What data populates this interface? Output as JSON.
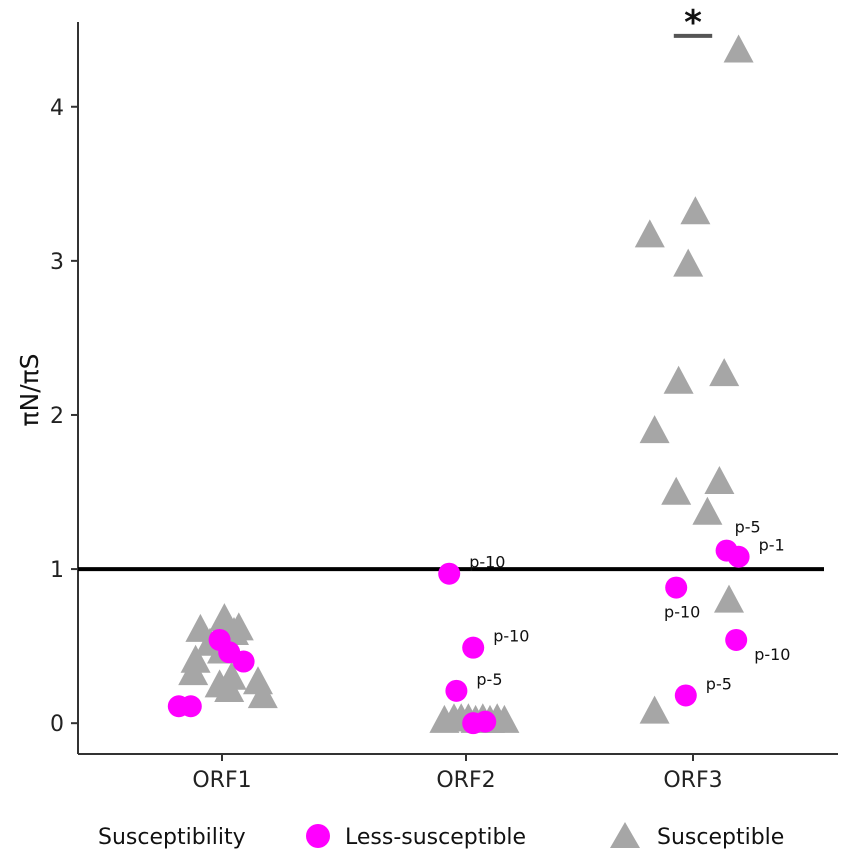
{
  "colors": {
    "less_susceptible": "#ff00ff",
    "susceptible": "#a6a6a6",
    "reference_line": "#000000",
    "bracket": "#555555",
    "axis": "#333333"
  },
  "chart_data": {
    "type": "scatter",
    "title": "",
    "xlabel": "",
    "ylabel": "πN/πS",
    "categories": [
      "ORF1",
      "ORF2",
      "ORF3"
    ],
    "ylim": [
      -0.2,
      4.55
    ],
    "yticks": [
      "0",
      "1",
      "2",
      "3",
      "4"
    ],
    "ytick_values": [
      0,
      1,
      2,
      3,
      4
    ],
    "reference_line": {
      "y": 1.0
    },
    "legend": {
      "title": "Susceptibility",
      "position": "bottom",
      "entries": [
        {
          "name": "Less-susceptible",
          "marker": "circle",
          "color_key": "less_susceptible"
        },
        {
          "name": "Susceptible",
          "marker": "triangle",
          "color_key": "susceptible"
        }
      ]
    },
    "significance": {
      "category": "ORF3",
      "y": 4.46,
      "x_from": -0.08,
      "x_to": 0.08,
      "symbol": "*"
    },
    "series": [
      {
        "name": "Susceptible",
        "marker": "triangle",
        "points": [
          {
            "category": "ORF1",
            "x_offset": -0.09,
            "y": 0.6
          },
          {
            "category": "ORF1",
            "x_offset": 0.01,
            "y": 0.67
          },
          {
            "category": "ORF1",
            "x_offset": 0.05,
            "y": 0.58
          },
          {
            "category": "ORF1",
            "x_offset": 0.07,
            "y": 0.61
          },
          {
            "category": "ORF1",
            "x_offset": -0.05,
            "y": 0.51
          },
          {
            "category": "ORF1",
            "x_offset": 0.0,
            "y": 0.46
          },
          {
            "category": "ORF1",
            "x_offset": -0.11,
            "y": 0.4
          },
          {
            "category": "ORF1",
            "x_offset": -0.12,
            "y": 0.32
          },
          {
            "category": "ORF1",
            "x_offset": 0.04,
            "y": 0.29
          },
          {
            "category": "ORF1",
            "x_offset": -0.01,
            "y": 0.24
          },
          {
            "category": "ORF1",
            "x_offset": 0.03,
            "y": 0.21
          },
          {
            "category": "ORF1",
            "x_offset": 0.15,
            "y": 0.26
          },
          {
            "category": "ORF1",
            "x_offset": 0.17,
            "y": 0.17
          },
          {
            "category": "ORF2",
            "x_offset": -0.09,
            "y": 0.01
          },
          {
            "category": "ORF2",
            "x_offset": -0.05,
            "y": 0.02
          },
          {
            "category": "ORF2",
            "x_offset": -0.02,
            "y": 0.02
          },
          {
            "category": "ORF2",
            "x_offset": 0.01,
            "y": 0.02
          },
          {
            "category": "ORF2",
            "x_offset": 0.04,
            "y": 0.01
          },
          {
            "category": "ORF2",
            "x_offset": 0.07,
            "y": 0.02
          },
          {
            "category": "ORF2",
            "x_offset": 0.1,
            "y": 0.01
          },
          {
            "category": "ORF2",
            "x_offset": 0.13,
            "y": 0.02
          },
          {
            "category": "ORF2",
            "x_offset": 0.16,
            "y": 0.01
          },
          {
            "category": "ORF3",
            "x_offset": 0.19,
            "y": 4.36
          },
          {
            "category": "ORF3",
            "x_offset": 0.01,
            "y": 3.31
          },
          {
            "category": "ORF3",
            "x_offset": -0.18,
            "y": 3.16
          },
          {
            "category": "ORF3",
            "x_offset": -0.02,
            "y": 2.97
          },
          {
            "category": "ORF3",
            "x_offset": 0.13,
            "y": 2.26
          },
          {
            "category": "ORF3",
            "x_offset": -0.06,
            "y": 2.21
          },
          {
            "category": "ORF3",
            "x_offset": -0.16,
            "y": 1.89
          },
          {
            "category": "ORF3",
            "x_offset": 0.11,
            "y": 1.56
          },
          {
            "category": "ORF3",
            "x_offset": -0.07,
            "y": 1.49
          },
          {
            "category": "ORF3",
            "x_offset": 0.06,
            "y": 1.36
          },
          {
            "category": "ORF3",
            "x_offset": 0.15,
            "y": 0.79
          },
          {
            "category": "ORF3",
            "x_offset": -0.16,
            "y": 0.07
          }
        ]
      },
      {
        "name": "Less-susceptible",
        "marker": "circle",
        "points": [
          {
            "category": "ORF1",
            "x_offset": -0.01,
            "y": 0.54,
            "label": ""
          },
          {
            "category": "ORF1",
            "x_offset": 0.03,
            "y": 0.46,
            "label": ""
          },
          {
            "category": "ORF1",
            "x_offset": 0.09,
            "y": 0.4,
            "label": ""
          },
          {
            "category": "ORF1",
            "x_offset": -0.18,
            "y": 0.11,
            "label": ""
          },
          {
            "category": "ORF1",
            "x_offset": -0.13,
            "y": 0.11,
            "label": ""
          },
          {
            "category": "ORF2",
            "x_offset": -0.07,
            "y": 0.97,
            "label": "p-10",
            "label_pos": "right"
          },
          {
            "category": "ORF2",
            "x_offset": 0.03,
            "y": 0.49,
            "label": "p-10",
            "label_pos": "right"
          },
          {
            "category": "ORF2",
            "x_offset": -0.04,
            "y": 0.21,
            "label": "p-5",
            "label_pos": "right"
          },
          {
            "category": "ORF2",
            "x_offset": 0.03,
            "y": 0.0,
            "label": ""
          },
          {
            "category": "ORF2",
            "x_offset": 0.08,
            "y": 0.01,
            "label": ""
          },
          {
            "category": "ORF3",
            "x_offset": 0.14,
            "y": 1.12,
            "label": "p-5",
            "label_pos": "above-right"
          },
          {
            "category": "ORF3",
            "x_offset": 0.19,
            "y": 1.08,
            "label": "p-1",
            "label_pos": "right"
          },
          {
            "category": "ORF3",
            "x_offset": -0.07,
            "y": 0.88,
            "label": "p-10",
            "label_pos": "below"
          },
          {
            "category": "ORF3",
            "x_offset": 0.18,
            "y": 0.54,
            "label": "p-10",
            "label_pos": "below-right"
          },
          {
            "category": "ORF3",
            "x_offset": -0.03,
            "y": 0.18,
            "label": "p-5",
            "label_pos": "right"
          }
        ]
      }
    ]
  }
}
